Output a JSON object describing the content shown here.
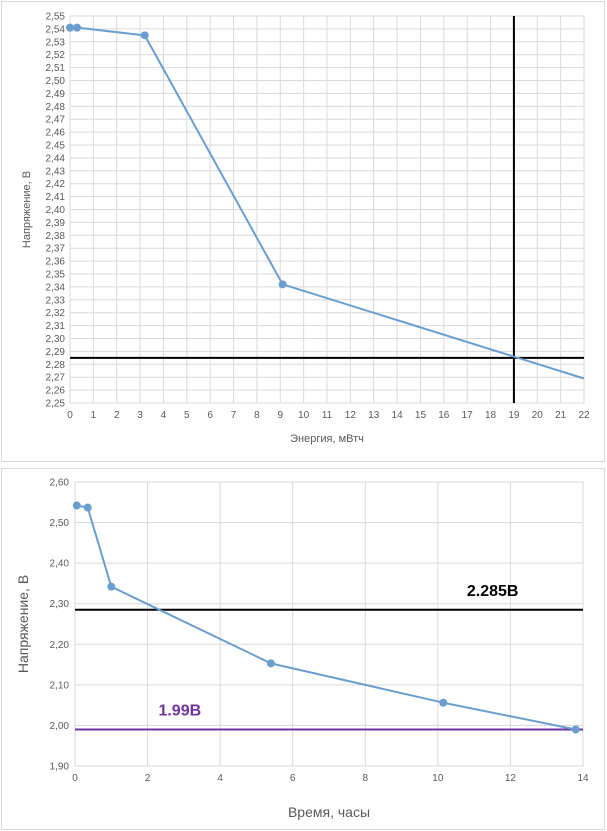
{
  "chart_data": [
    {
      "type": "line",
      "xlabel": "Энергия, мВтч",
      "ylabel": "Напряжение, В",
      "xlim": [
        0,
        22
      ],
      "ylim": [
        2.25,
        2.55
      ],
      "x_ticks": [
        "0",
        "1",
        "2",
        "3",
        "4",
        "5",
        "6",
        "7",
        "8",
        "9",
        "10",
        "11",
        "12",
        "13",
        "14",
        "15",
        "16",
        "17",
        "18",
        "19",
        "20",
        "21",
        "22"
      ],
      "y_ticks": [
        "2,25",
        "2,26",
        "2,27",
        "2,28",
        "2,29",
        "2,30",
        "2,31",
        "2,32",
        "2,33",
        "2,34",
        "2,35",
        "2,36",
        "2,37",
        "2,38",
        "2,39",
        "2,40",
        "2,41",
        "2,42",
        "2,43",
        "2,44",
        "2,45",
        "2,46",
        "2,47",
        "2,48",
        "2,49",
        "2,50",
        "2,51",
        "2,52",
        "2,53",
        "2,54",
        "2,55"
      ],
      "grid": true,
      "line_color": "#6a9ecf",
      "series": [
        {
          "x": [
            0.0,
            0.3,
            3.2,
            9.1,
            22.0
          ],
          "y": [
            2.541,
            2.541,
            2.535,
            2.342,
            2.269
          ],
          "markers": [
            true,
            true,
            true,
            true,
            false
          ]
        }
      ],
      "reference_lines": [
        {
          "orientation": "horizontal",
          "value": 2.285,
          "color": "#000000"
        },
        {
          "orientation": "vertical",
          "value": 19,
          "color": "#000000"
        }
      ]
    },
    {
      "type": "line",
      "xlabel": "Время, часы",
      "ylabel": "Напряжение, В",
      "xlim": [
        0,
        14
      ],
      "ylim": [
        1.9,
        2.6
      ],
      "x_ticks": [
        "0",
        "2",
        "4",
        "6",
        "8",
        "10",
        "12",
        "14"
      ],
      "y_ticks": [
        "1,90",
        "2,00",
        "2,10",
        "2,20",
        "2,30",
        "2,40",
        "2,50",
        "2,60"
      ],
      "grid": true,
      "line_color": "#6a9ecf",
      "series": [
        {
          "x": [
            0.05,
            0.35,
            1.0,
            5.4,
            10.15,
            13.8
          ],
          "y": [
            2.542,
            2.537,
            2.342,
            2.153,
            2.056,
            1.99
          ],
          "markers": [
            true,
            true,
            true,
            true,
            true,
            true
          ]
        }
      ],
      "reference_lines": [
        {
          "orientation": "horizontal",
          "value": 2.285,
          "color": "#000000",
          "label": "2.285В",
          "label_color": "#000000"
        },
        {
          "orientation": "horizontal",
          "value": 1.99,
          "color": "#7030a0",
          "label": "1.99В",
          "label_color": "#7030a0"
        }
      ]
    }
  ]
}
